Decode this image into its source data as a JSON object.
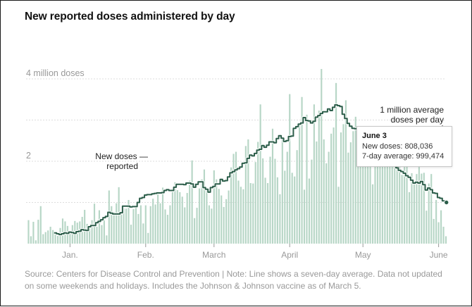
{
  "title": "New reported doses administered by day",
  "footer": {
    "note": "Source: Centers for Disease Control and Prevention | Note: Line shows a seven-day average. Data not updated on some weekends and holidays. Includes the Johnson & Johnson vaccine as of March 5."
  },
  "tooltip": {
    "date": "June 3",
    "new_doses_label": "New doses:",
    "new_doses_value": "808,036",
    "avg_label": "7-day average:",
    "avg_value": "999,474"
  },
  "colors": {
    "bar": "#b7d6c6",
    "line": "#2c5e4a",
    "grid": "#dddddd",
    "axis_text": "#999999"
  },
  "chart_data": {
    "type": "bar",
    "title": "New reported doses administered by day",
    "xlabel": "",
    "ylabel": "Doses",
    "ylim": [
      0,
      4.6
    ],
    "y_ticks": [
      {
        "value": 4,
        "label": "4 million doses"
      },
      {
        "value": 2,
        "label": "2"
      }
    ],
    "y_gridlines": [
      1,
      2,
      3,
      4
    ],
    "x_ticks": [
      {
        "day": 18,
        "label": "Jan."
      },
      {
        "day": 49,
        "label": "Feb."
      },
      {
        "day": 77,
        "label": "March"
      },
      {
        "day": 108,
        "label": "April"
      },
      {
        "day": 138,
        "label": "May"
      },
      {
        "day": 169,
        "label": "June"
      }
    ],
    "x_range": [
      0,
      172
    ],
    "bar_start_day": 1,
    "values": [
      0.57,
      0.18,
      0.53,
      0.08,
      0.58,
      0.91,
      0.23,
      0.28,
      0.32,
      0.41,
      0.33,
      0.26,
      0.19,
      0.38,
      0.61,
      0.54,
      0.43,
      0.3,
      0.45,
      0.55,
      0.51,
      0.54,
      0.65,
      0.82,
      0.48,
      0.37,
      0.57,
      0.97,
      0.41,
      0.81,
      0.45,
      0.57,
      0.2,
      1.29,
      0.91,
      0.77,
      0.98,
      1.37,
      0.71,
      0.86,
      0.85,
      1.06,
      0.46,
      0.84,
      0.91,
      0.72,
      0.93,
      0.49,
      0.93,
      0.26,
      0.91,
      1.09,
      0.95,
      1.21,
      0.98,
      1.36,
      0.83,
      0.7,
      0.93,
      1.25,
      1.49,
      1.3,
      1.25,
      1.14,
      0.88,
      1.23,
      1.53,
      2.02,
      0.62,
      0.87,
      1.34,
      1.56,
      1.8,
      1.31,
      0.93,
      0.85,
      1.78,
      1.56,
      1.33,
      1.17,
      0.89,
      1.08,
      1.29,
      1.85,
      2.18,
      2.23,
      1.53,
      1.38,
      1.32,
      2.37,
      2.53,
      1.47,
      1.46,
      1.98,
      2.47,
      3.38,
      2.07,
      1.6,
      1.47,
      2.11,
      2.79,
      2.06,
      1.61,
      1.2,
      2.56,
      1.77,
      2.23,
      3.63,
      1.72,
      1.63,
      2.27,
      2.88,
      3.56,
      1.31,
      3.13,
      1.58,
      2.04,
      3.38,
      2.48,
      3.23,
      4.24,
      2.53,
      1.95,
      2.23,
      2.67,
      2.82,
      3.9,
      1.38,
      2.7,
      2.9,
      3.48,
      2.21,
      2.46,
      2.73,
      3.08,
      2.65,
      2.22,
      2.59,
      2.12,
      2.61,
      2.05,
      1.44,
      2.25,
      2.47,
      2.54,
      2.21,
      2.08,
      2.13,
      2.14,
      2.4,
      2.52,
      1.85,
      1.91,
      1.67,
      1.86,
      1.97,
      1.25,
      1.71,
      1.52,
      1.69,
      1.86,
      1.7,
      1.72,
      0.8,
      1.46,
      1.69,
      0.6,
      1.06,
      0.52,
      0.81,
      0.41,
      0.18
    ],
    "average_series": {
      "name": "7-day average",
      "start_day": 12,
      "values": [
        0.26,
        0.24,
        0.22,
        0.24,
        0.26,
        0.25,
        0.28,
        0.27,
        0.25,
        0.29,
        0.3,
        0.34,
        0.33,
        0.32,
        0.41,
        0.44,
        0.44,
        0.51,
        0.54,
        0.58,
        0.63,
        0.66,
        0.76,
        0.74,
        0.72,
        0.72,
        0.72,
        0.75,
        0.91,
        0.91,
        0.91,
        0.89,
        0.9,
        0.9,
        1.0,
        1.1,
        1.12,
        1.18,
        1.19,
        1.19,
        1.21,
        1.22,
        1.23,
        1.23,
        1.24,
        1.29,
        1.31,
        1.29,
        1.29,
        1.37,
        1.44,
        1.44,
        1.44,
        1.43,
        1.47,
        1.47,
        1.45,
        1.37,
        1.44,
        1.5,
        1.5,
        1.36,
        1.32,
        1.25,
        1.36,
        1.39,
        1.45,
        1.45,
        1.56,
        1.52,
        1.53,
        1.62,
        1.72,
        1.75,
        1.79,
        1.82,
        1.86,
        1.95,
        1.96,
        2.07,
        2.15,
        2.13,
        2.19,
        2.27,
        2.29,
        2.38,
        2.34,
        2.39,
        2.47,
        2.47,
        2.45,
        2.55,
        2.62,
        2.56,
        2.48,
        2.5,
        2.6,
        2.61,
        2.8,
        2.84,
        2.9,
        2.93,
        3.06,
        2.99,
        2.98,
        2.93,
        2.97,
        3.07,
        3.11,
        3.16,
        3.2,
        3.2,
        3.27,
        3.23,
        3.31,
        3.37,
        3.35,
        3.33,
        3.14,
        3.04,
        2.92,
        2.85,
        2.8,
        2.79,
        2.78,
        2.71,
        2.67,
        2.65,
        2.63,
        2.63,
        2.59,
        2.55,
        2.5,
        2.42,
        2.28,
        2.23,
        2.12,
        2.02,
        1.95,
        1.9,
        1.84,
        1.78,
        1.75,
        1.71,
        1.65,
        1.61,
        1.54,
        1.47,
        1.49,
        1.47,
        1.51,
        1.43,
        1.3,
        1.35,
        1.31,
        1.23,
        1.22,
        1.12,
        1.1,
        1.04,
        1.0
      ]
    },
    "annotations": [
      {
        "text": "New doses —",
        "text2": "reported",
        "target_day": 60
      },
      {
        "text": "1 million average",
        "text2": "doses per day",
        "target_day": 170
      }
    ]
  }
}
